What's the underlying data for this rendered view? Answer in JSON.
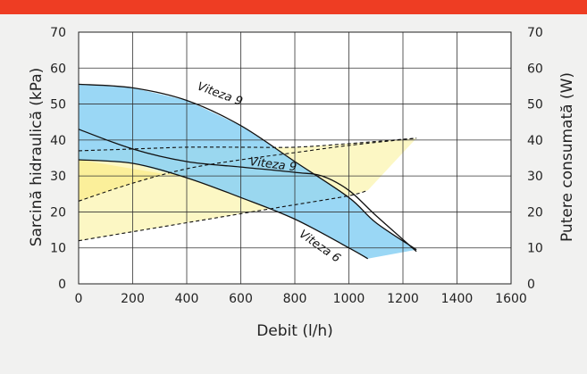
{
  "chart_data": {
    "type": "line",
    "xlabel": "Debit (l/h)",
    "ylabel_left": "Sarcină hidraulică (kPa)",
    "ylabel_right": "Putere consumată (W)",
    "xlim": [
      0,
      1600
    ],
    "ylim_left": [
      0,
      70
    ],
    "ylim_right": [
      0,
      70
    ],
    "x_ticks": [
      "0",
      "200",
      "400",
      "600",
      "800",
      "1000",
      "1200",
      "1400",
      "1600"
    ],
    "y_ticks_left": [
      "0",
      "10",
      "20",
      "30",
      "40",
      "50",
      "60",
      "70"
    ],
    "y_ticks_right": [
      "0",
      "10",
      "20",
      "30",
      "40",
      "50",
      "60",
      "70"
    ],
    "grid": true,
    "colors": {
      "head_band": "#8fd3f4",
      "power_band": "#fcf7c4",
      "line": "#111111",
      "top_bar": "#ee3d23",
      "background": "#f1f1f0"
    },
    "head_curves": [
      {
        "label": "Viteza 9",
        "x": [
          0,
          200,
          400,
          600,
          800,
          1000,
          1100,
          1250
        ],
        "y": [
          55.5,
          54.5,
          51,
          44,
          34,
          24,
          17,
          9.5
        ]
      },
      {
        "label": "Viteza 9",
        "x": [
          0,
          200,
          400,
          600,
          800,
          900,
          1000,
          1100,
          1250
        ],
        "y": [
          43,
          37.5,
          34,
          32.5,
          31,
          30,
          26,
          19,
          9
        ]
      },
      {
        "label": "Viteza 6",
        "x": [
          0,
          200,
          400,
          600,
          800,
          1000,
          1070
        ],
        "y": [
          34.5,
          33.5,
          29.5,
          24,
          18,
          10,
          7
        ]
      }
    ],
    "power_curves": [
      {
        "x": [
          0,
          200,
          400,
          600,
          800,
          1000,
          1250
        ],
        "y": [
          37,
          37.5,
          38,
          38,
          38,
          39,
          40.5
        ]
      },
      {
        "x": [
          0,
          200,
          400,
          600,
          800,
          1000,
          1250
        ],
        "y": [
          23,
          28,
          32,
          34.5,
          36.5,
          38.5,
          40.5
        ]
      },
      {
        "x": [
          0,
          200,
          400,
          600,
          800,
          1000,
          1070
        ],
        "y": [
          12,
          14.5,
          17,
          19.5,
          22,
          24.5,
          26
        ]
      }
    ]
  }
}
